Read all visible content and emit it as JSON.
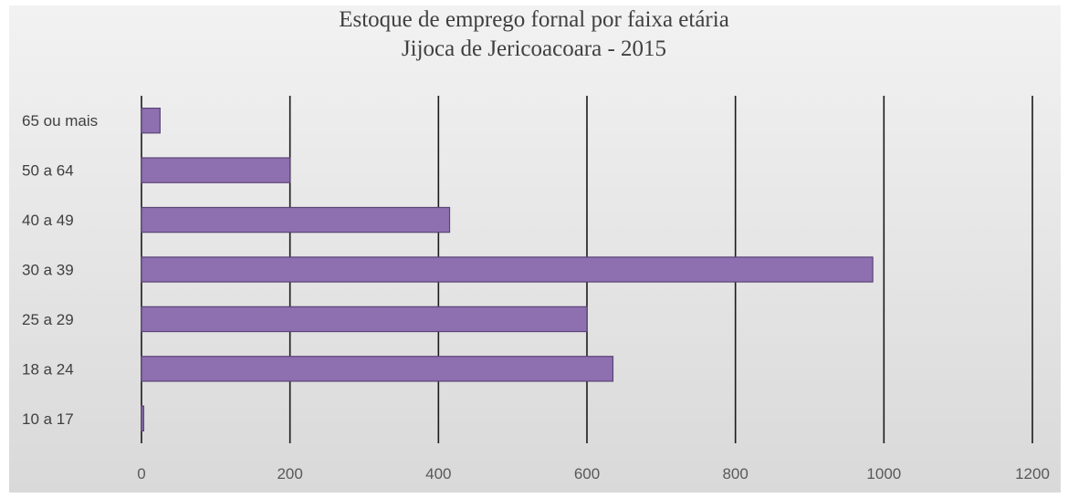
{
  "chart_data": {
    "type": "bar",
    "orientation": "horizontal",
    "title": "Estoque de emprego fornal por faixa etária",
    "subtitle": "Jijoca de Jericoacoara - 2015",
    "categories": [
      "10 a 17",
      "18 a 24",
      "25 a 29",
      "30 a 39",
      "40 a 49",
      "50 a 64",
      "65 ou mais"
    ],
    "values": [
      3,
      635,
      600,
      985,
      415,
      200,
      25
    ],
    "xlim": [
      0,
      1200
    ],
    "x_ticks": [
      0,
      200,
      400,
      600,
      800,
      1000,
      1200
    ],
    "x_tick_labels": [
      "0",
      "200",
      "400",
      "600",
      "800",
      "1000",
      "1200"
    ],
    "grid": "vertical",
    "legend": "none",
    "colors": {
      "bar_fill": "#8e6fb0",
      "bar_stroke": "#5b4577",
      "grid": "#1a1a1a"
    }
  }
}
